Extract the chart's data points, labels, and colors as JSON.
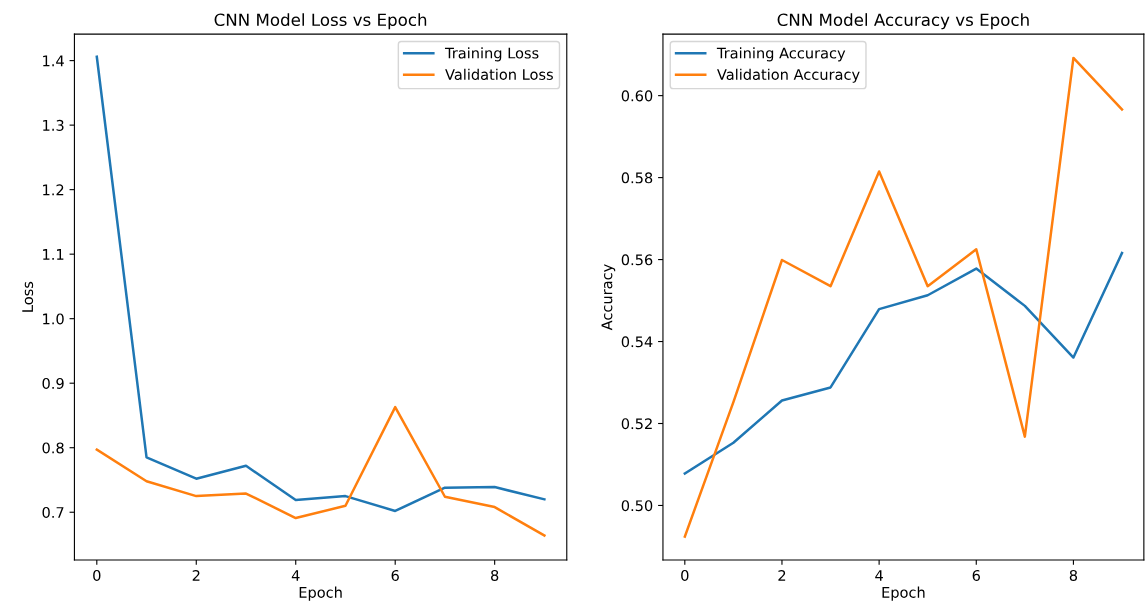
{
  "chart_data": [
    {
      "type": "line",
      "title": "CNN Model Loss vs Epoch",
      "xlabel": "Epoch",
      "ylabel": "Loss",
      "x": [
        0,
        1,
        2,
        3,
        4,
        5,
        6,
        7,
        8,
        9
      ],
      "xlim": [
        -0.45,
        9.45
      ],
      "xticks": [
        0,
        2,
        4,
        6,
        8
      ],
      "ylim": [
        0.626,
        1.441
      ],
      "yticks": [
        {
          "value": 0.7,
          "label": "0.7"
        },
        {
          "value": 0.8,
          "label": "0.8"
        },
        {
          "value": 0.9,
          "label": "0.9"
        },
        {
          "value": 1.0,
          "label": "1.0"
        },
        {
          "value": 1.1,
          "label": "1.1"
        },
        {
          "value": 1.2,
          "label": "1.2"
        },
        {
          "value": 1.3,
          "label": "1.3"
        },
        {
          "value": 1.4,
          "label": "1.4"
        }
      ],
      "legend": "top right",
      "grid": false,
      "series": [
        {
          "name": "Training Loss",
          "color": "#1f77b4",
          "values": [
            1.406,
            0.785,
            0.752,
            0.772,
            0.719,
            0.725,
            0.702,
            0.738,
            0.739,
            0.72
          ]
        },
        {
          "name": "Validation Loss",
          "color": "#ff7f0e",
          "values": [
            0.797,
            0.748,
            0.725,
            0.729,
            0.691,
            0.71,
            0.863,
            0.724,
            0.708,
            0.664
          ]
        }
      ]
    },
    {
      "type": "line",
      "title": "CNN Model Accuracy vs Epoch",
      "xlabel": "Epoch",
      "ylabel": "Accuracy",
      "x": [
        0,
        1,
        2,
        3,
        4,
        5,
        6,
        7,
        8,
        9
      ],
      "xlim": [
        -0.45,
        9.45
      ],
      "xticks": [
        0,
        2,
        4,
        6,
        8
      ],
      "ylim": [
        0.4867,
        0.615
      ],
      "yticks": [
        {
          "value": 0.5,
          "label": "0.50"
        },
        {
          "value": 0.52,
          "label": "0.52"
        },
        {
          "value": 0.54,
          "label": "0.54"
        },
        {
          "value": 0.56,
          "label": "0.56"
        },
        {
          "value": 0.58,
          "label": "0.58"
        },
        {
          "value": 0.6,
          "label": "0.60"
        }
      ],
      "legend": "top left",
      "grid": false,
      "series": [
        {
          "name": "Training Accuracy",
          "color": "#1f77b4",
          "values": [
            0.5078,
            0.5153,
            0.5256,
            0.5288,
            0.5479,
            0.5513,
            0.5578,
            0.5487,
            0.5361,
            0.5616
          ]
        },
        {
          "name": "Validation Accuracy",
          "color": "#ff7f0e",
          "values": [
            0.4924,
            0.5252,
            0.5599,
            0.5535,
            0.5815,
            0.5535,
            0.5625,
            0.5168,
            0.6092,
            0.5966
          ]
        }
      ]
    }
  ]
}
